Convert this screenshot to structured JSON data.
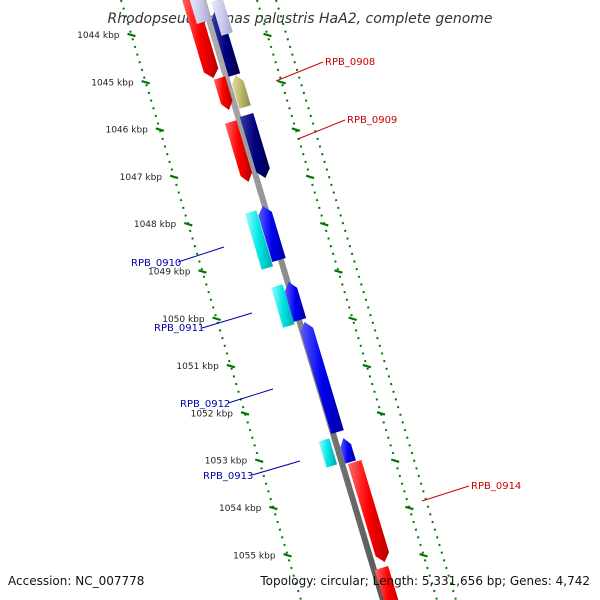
{
  "title": "Rhodopseudomonas palustris HaA2, complete genome",
  "accession_text": "Accession: NC_007778",
  "summary_text": "Topology: circular; Length: 5,331,656 bp; Genes: 4,742",
  "ticks": [
    "1044 kbp",
    "1045 kbp",
    "1046 kbp",
    "1047 kbp",
    "1048 kbp",
    "1049 kbp",
    "1050 kbp",
    "1051 kbp",
    "1052 kbp",
    "1053 kbp",
    "1054 kbp",
    "1055 kbp"
  ],
  "gene_labels": {
    "rpb0908": "RPB_0908",
    "rpb0909": "RPB_0909",
    "rpb0910": "RPB_0910",
    "rpb0911": "RPB_0911",
    "rpb0912": "RPB_0912",
    "rpb0913": "RPB_0913",
    "rpb0914": "RPB_0914"
  },
  "colors": {
    "backbone": "#888888",
    "forward_cds": "#ff0000",
    "reverse_cds": "#0000ee",
    "dark_cds": "#000080",
    "cyan_cds": "#00e5e5",
    "olive_cds": "#bdb76b",
    "faded_cds": "#ccccee",
    "forward_label": "#cc0000",
    "reverse_label": "#0000aa",
    "scale_dots": "#007700"
  }
}
